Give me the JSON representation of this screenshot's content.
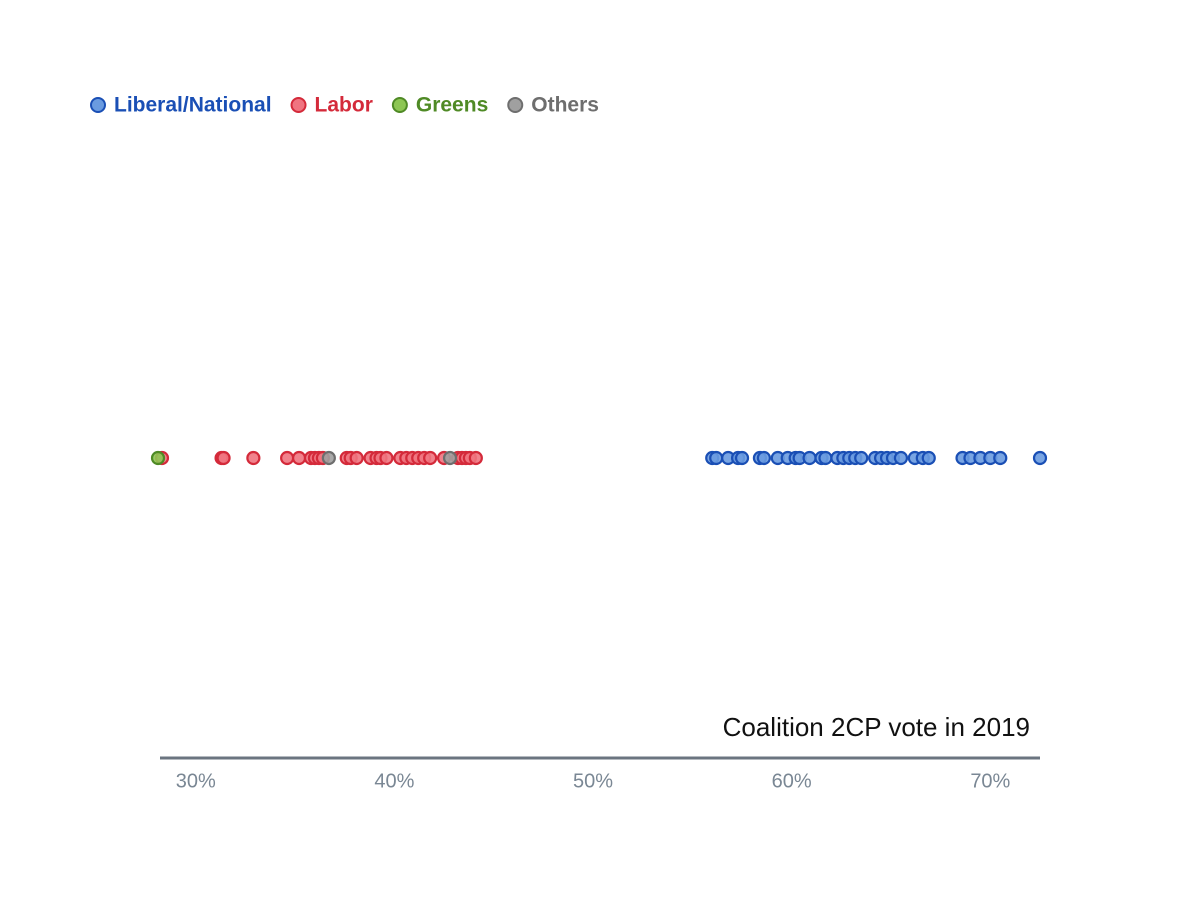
{
  "chart_data": {
    "type": "strip",
    "xlabel": "Coalition 2CP vote in 2019",
    "xlim": [
      28.2,
      72.5
    ],
    "xticks": [
      {
        "value": 30,
        "label": "30%"
      },
      {
        "value": 40,
        "label": "40%"
      },
      {
        "value": 50,
        "label": "50%"
      },
      {
        "value": 60,
        "label": "60%"
      },
      {
        "value": 70,
        "label": "70%"
      }
    ],
    "legend": "top-left",
    "series": [
      {
        "name": "Liberal/National",
        "color": "#1a4fb5",
        "fill": "#6a9be0",
        "values": [
          56.0,
          56.2,
          56.8,
          57.3,
          57.5,
          58.4,
          58.6,
          59.3,
          59.8,
          60.2,
          60.4,
          60.9,
          61.5,
          61.7,
          62.3,
          62.6,
          62.9,
          63.2,
          63.5,
          64.2,
          64.5,
          64.8,
          65.1,
          65.5,
          66.2,
          66.6,
          66.9,
          68.6,
          69.0,
          69.5,
          70.0,
          70.5,
          72.5
        ]
      },
      {
        "name": "Labor",
        "color": "#d42a3a",
        "fill": "#f07480",
        "values": [
          28.3,
          31.3,
          31.4,
          32.9,
          34.6,
          35.2,
          35.8,
          36.0,
          36.2,
          36.4,
          37.6,
          37.8,
          38.1,
          38.8,
          39.1,
          39.3,
          39.6,
          40.3,
          40.6,
          40.9,
          41.2,
          41.5,
          41.8,
          42.5,
          43.2,
          43.4,
          43.6,
          43.8,
          44.1
        ]
      },
      {
        "name": "Greens",
        "color": "#4f8a25",
        "fill": "#8dc653",
        "values": [
          28.1
        ]
      },
      {
        "name": "Others",
        "color": "#6e6e6e",
        "fill": "#a0a0a0",
        "values": [
          36.7,
          42.8
        ]
      }
    ]
  }
}
